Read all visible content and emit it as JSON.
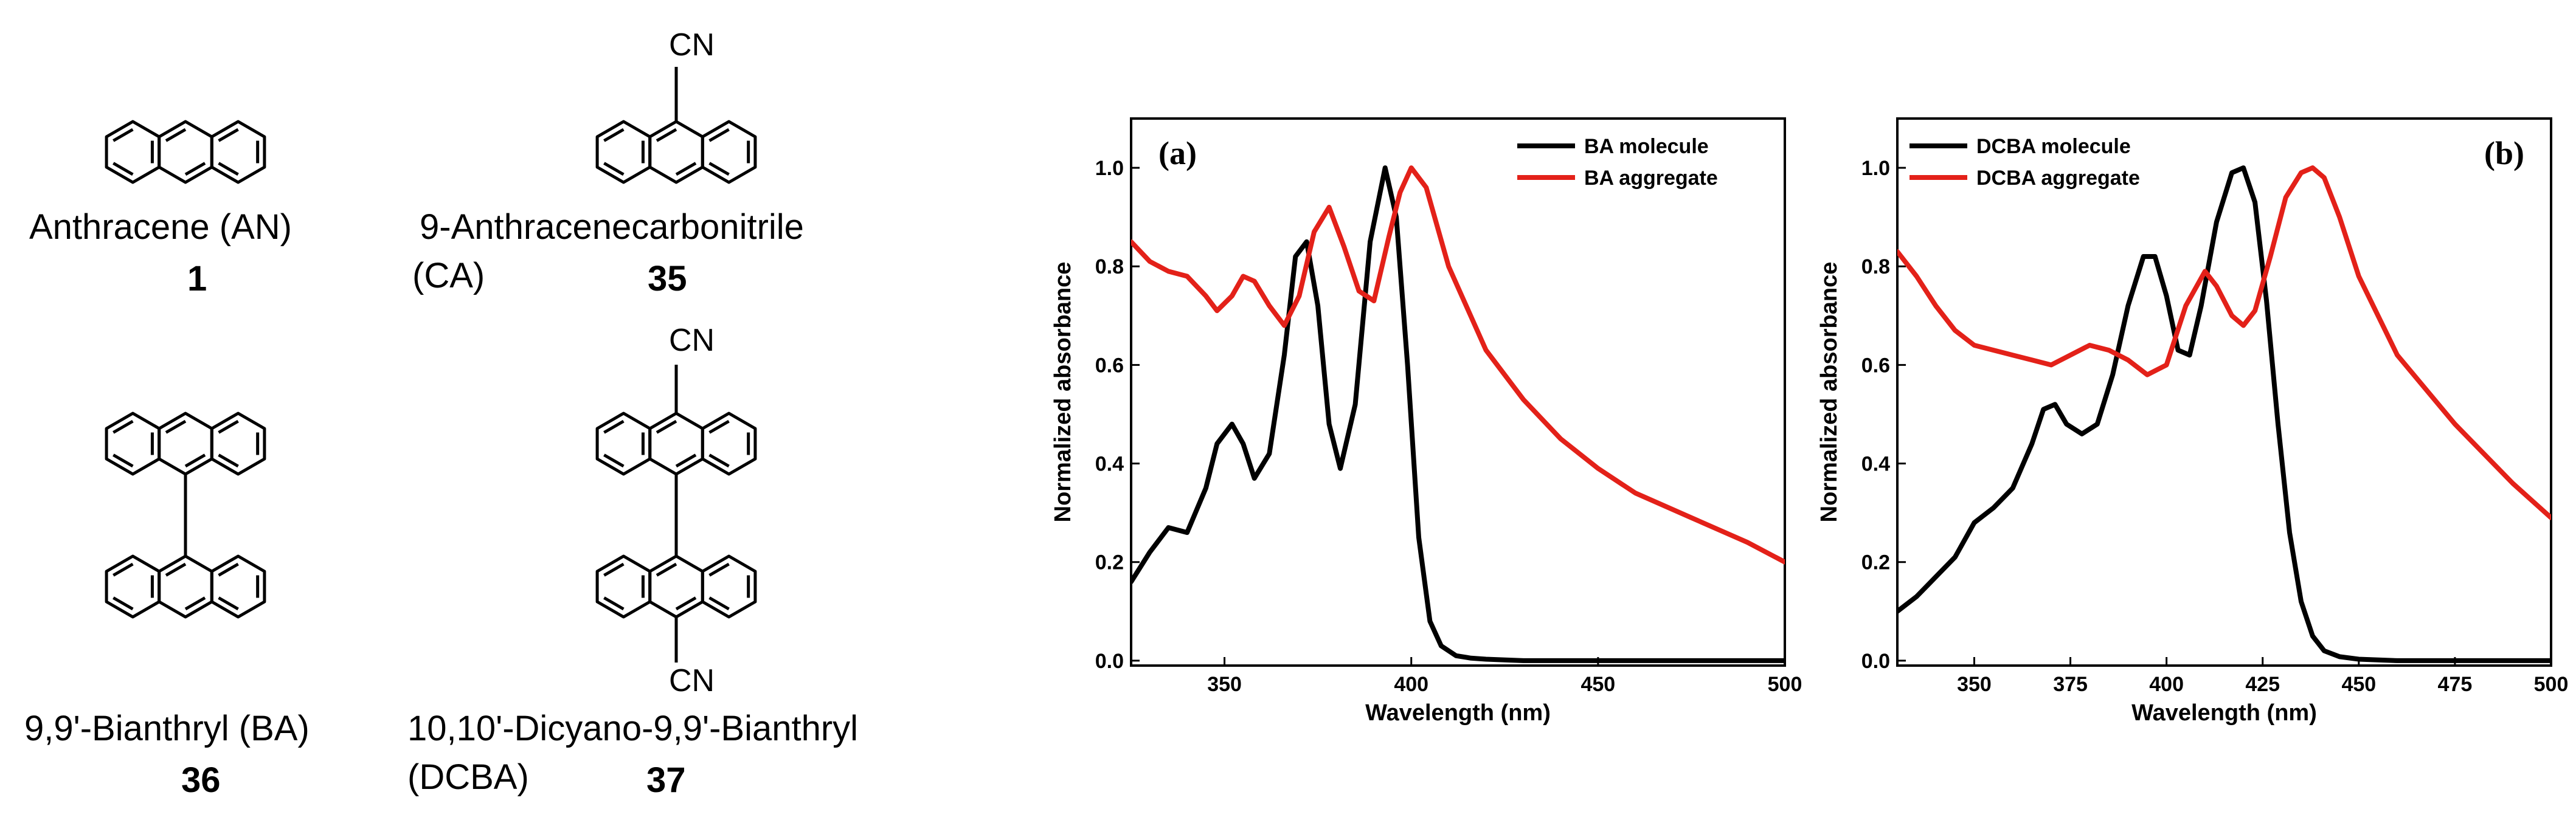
{
  "molecules": [
    {
      "name": "Anthracene (AN)",
      "number": "1"
    },
    {
      "name": "9-Anthracenecarbonitrile",
      "name2": "(CA)",
      "number": "35",
      "substituent": "CN"
    },
    {
      "name": "9,9'-Bianthryl (BA)",
      "number": "36"
    },
    {
      "name": "10,10'-Dicyano-9,9'-Bianthryl",
      "name2": "(DCBA)",
      "number": "37",
      "substituent_top": "CN",
      "substituent_bottom": "CN"
    }
  ],
  "chart_data": [
    {
      "type": "line",
      "panel": "(a)",
      "xlabel": "Wavelength (nm)",
      "ylabel": "Normalized absorbance",
      "xlim": [
        325,
        500
      ],
      "ylim": [
        -0.01,
        1.1
      ],
      "xticks": [
        350,
        400,
        450,
        500
      ],
      "xtick_labels": [
        "350",
        "400",
        "450",
        "500"
      ],
      "yticks": [
        0.0,
        0.2,
        0.4,
        0.6,
        0.8,
        1.0
      ],
      "ytick_labels": [
        "0.0",
        "0.2",
        "0.4",
        "0.6",
        "0.8",
        "1.0"
      ],
      "legend_position": "top-right",
      "series": [
        {
          "name": "BA molecule",
          "color": "#000000",
          "x": [
            325,
            330,
            335,
            340,
            345,
            348,
            352,
            355,
            358,
            362,
            366,
            369,
            372,
            375,
            378,
            381,
            385,
            389,
            393,
            396,
            399,
            402,
            405,
            408,
            412,
            416,
            420,
            430,
            450,
            475,
            500
          ],
          "y": [
            0.16,
            0.22,
            0.27,
            0.26,
            0.35,
            0.44,
            0.48,
            0.44,
            0.37,
            0.42,
            0.62,
            0.82,
            0.85,
            0.72,
            0.48,
            0.39,
            0.52,
            0.85,
            1.0,
            0.9,
            0.6,
            0.25,
            0.08,
            0.03,
            0.01,
            0.005,
            0.003,
            0.0,
            0.0,
            0.0,
            0.0
          ]
        },
        {
          "name": "BA aggregate",
          "color": "#e32119",
          "x": [
            325,
            330,
            335,
            340,
            345,
            348,
            352,
            355,
            358,
            362,
            366,
            370,
            374,
            378,
            382,
            386,
            390,
            394,
            397,
            400,
            404,
            410,
            420,
            430,
            440,
            450,
            460,
            475,
            490,
            500
          ],
          "y": [
            0.85,
            0.81,
            0.79,
            0.78,
            0.74,
            0.71,
            0.74,
            0.78,
            0.77,
            0.72,
            0.68,
            0.74,
            0.87,
            0.92,
            0.84,
            0.75,
            0.73,
            0.86,
            0.95,
            1.0,
            0.96,
            0.8,
            0.63,
            0.53,
            0.45,
            0.39,
            0.34,
            0.29,
            0.24,
            0.2
          ]
        }
      ]
    },
    {
      "type": "line",
      "panel": "(b)",
      "xlabel": "Wavelength (nm)",
      "ylabel": "Normalized absorbance",
      "xlim": [
        330,
        500
      ],
      "ylim": [
        -0.01,
        1.1
      ],
      "xticks": [
        350,
        375,
        400,
        425,
        450,
        475,
        500
      ],
      "xtick_labels": [
        "350",
        "375",
        "400",
        "425",
        "450",
        "475",
        "500"
      ],
      "yticks": [
        0.0,
        0.2,
        0.4,
        0.6,
        0.8,
        1.0
      ],
      "ytick_labels": [
        "0.0",
        "0.2",
        "0.4",
        "0.6",
        "0.8",
        "1.0"
      ],
      "legend_position": "top-left",
      "series": [
        {
          "name": "DCBA molecule",
          "color": "#000000",
          "x": [
            330,
            335,
            340,
            345,
            350,
            355,
            360,
            365,
            368,
            371,
            374,
            378,
            382,
            386,
            390,
            394,
            397,
            400,
            403,
            406,
            409,
            413,
            417,
            420,
            423,
            426,
            429,
            432,
            435,
            438,
            441,
            445,
            450,
            460,
            475,
            500
          ],
          "y": [
            0.1,
            0.13,
            0.17,
            0.21,
            0.28,
            0.31,
            0.35,
            0.44,
            0.51,
            0.52,
            0.48,
            0.46,
            0.48,
            0.58,
            0.72,
            0.82,
            0.82,
            0.74,
            0.63,
            0.62,
            0.72,
            0.89,
            0.99,
            1.0,
            0.93,
            0.73,
            0.48,
            0.26,
            0.12,
            0.05,
            0.02,
            0.008,
            0.003,
            0.0,
            0.0,
            0.0
          ]
        },
        {
          "name": "DCBA aggregate",
          "color": "#e32119",
          "x": [
            330,
            335,
            340,
            345,
            350,
            355,
            360,
            365,
            370,
            375,
            380,
            385,
            390,
            395,
            400,
            405,
            410,
            413,
            417,
            420,
            423,
            427,
            431,
            435,
            438,
            441,
            445,
            450,
            460,
            475,
            490,
            500
          ],
          "y": [
            0.83,
            0.78,
            0.72,
            0.67,
            0.64,
            0.63,
            0.62,
            0.61,
            0.6,
            0.62,
            0.64,
            0.63,
            0.61,
            0.58,
            0.6,
            0.72,
            0.79,
            0.76,
            0.7,
            0.68,
            0.71,
            0.82,
            0.94,
            0.99,
            1.0,
            0.98,
            0.9,
            0.78,
            0.62,
            0.48,
            0.36,
            0.29
          ]
        }
      ]
    }
  ]
}
